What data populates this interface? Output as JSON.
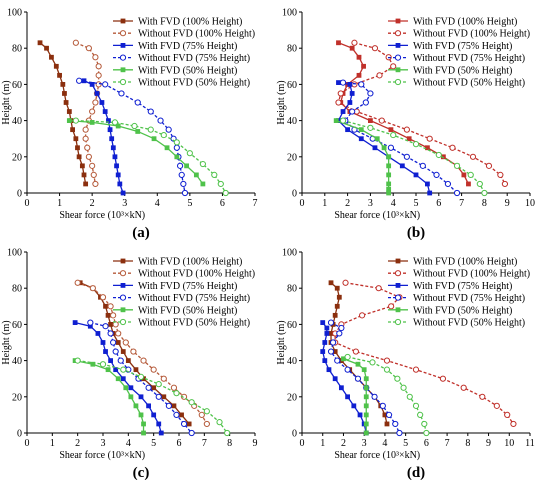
{
  "chart_data": [
    {
      "id": "a",
      "type": "line",
      "panel_label": "(a)",
      "xlabel": "Shear force (10³×kN)",
      "ylabel": "Height (m)",
      "xlim": [
        0,
        7
      ],
      "ylim": [
        0,
        100
      ],
      "xticks": [
        0,
        1,
        2,
        3,
        4,
        5,
        6,
        7
      ],
      "yticks": [
        0,
        20,
        40,
        60,
        80,
        100
      ],
      "legend_position": "top-right",
      "series": [
        {
          "name": "With FVD (100% Height)",
          "color": "#8b2f0e",
          "dashed": false,
          "marker": "square",
          "x": [
            0.4,
            0.6,
            0.75,
            0.9,
            1.0,
            1.1,
            1.15,
            1.2,
            1.3,
            1.35,
            1.4,
            1.5,
            1.55,
            1.6,
            1.7,
            1.75,
            1.8
          ],
          "y": [
            83,
            80,
            75,
            70,
            65,
            60,
            55,
            50,
            45,
            40,
            35,
            30,
            25,
            20,
            15,
            10,
            5
          ]
        },
        {
          "name": "Without FVD (100% Height)",
          "color": "#b55a3a",
          "dashed": true,
          "marker": "circle",
          "x": [
            1.5,
            1.9,
            2.1,
            2.2,
            2.2,
            2.2,
            2.15,
            2.1,
            2.0,
            1.9,
            1.8,
            1.8,
            1.85,
            1.9,
            2.0,
            2.05,
            2.1
          ],
          "y": [
            83,
            80,
            75,
            70,
            65,
            60,
            55,
            50,
            45,
            40,
            35,
            30,
            25,
            20,
            15,
            10,
            5
          ]
        },
        {
          "name": "With FVD (75% Height)",
          "color": "#0f1fd1",
          "dashed": false,
          "marker": "square",
          "x": [
            1.75,
            2.0,
            2.15,
            2.3,
            2.4,
            2.5,
            2.55,
            2.6,
            2.65,
            2.7,
            2.75,
            2.8,
            2.85,
            2.95
          ],
          "y": [
            62,
            60,
            55,
            50,
            45,
            40,
            35,
            30,
            25,
            20,
            15,
            10,
            5,
            0
          ]
        },
        {
          "name": "Without FVD (75% Height)",
          "color": "#0f1fd1",
          "dashed": true,
          "marker": "circle",
          "x": [
            1.6,
            2.4,
            2.9,
            3.4,
            3.8,
            4.1,
            4.35,
            4.5,
            4.6,
            4.65,
            4.7,
            4.75,
            4.8,
            4.85
          ],
          "y": [
            62,
            60,
            55,
            50,
            45,
            40,
            35,
            30,
            25,
            20,
            15,
            10,
            5,
            0
          ]
        },
        {
          "name": "With FVD (50% Height)",
          "color": "#4fc24a",
          "dashed": false,
          "marker": "square",
          "x": [
            1.3,
            2.0,
            2.8,
            3.4,
            3.9,
            4.3,
            4.6,
            4.9,
            5.2,
            5.4
          ],
          "y": [
            40,
            39,
            37,
            34,
            30,
            25,
            20,
            15,
            10,
            5
          ]
        },
        {
          "name": "Without FVD (50% Height)",
          "color": "#4fc24a",
          "dashed": true,
          "marker": "circle",
          "x": [
            1.5,
            2.7,
            3.3,
            3.8,
            4.2,
            4.6,
            5.0,
            5.4,
            5.75,
            5.95,
            6.1
          ],
          "y": [
            40,
            39,
            37,
            35,
            32,
            28,
            22,
            16,
            10,
            5,
            0
          ]
        }
      ]
    },
    {
      "id": "b",
      "type": "line",
      "panel_label": "(b)",
      "xlabel": "Shear force (10³×kN)",
      "ylabel": "Height (m)",
      "xlim": [
        0,
        10
      ],
      "ylim": [
        0,
        100
      ],
      "xticks": [
        0,
        1,
        2,
        3,
        4,
        5,
        6,
        7,
        8,
        9,
        10
      ],
      "yticks": [
        0,
        20,
        40,
        60,
        80,
        100
      ],
      "legend_position": "top-right",
      "series": [
        {
          "name": "With FVD (100% Height)",
          "color": "#c0302a",
          "dashed": false,
          "marker": "square",
          "x": [
            1.6,
            2.2,
            2.5,
            2.7,
            2.5,
            2.0,
            1.8,
            1.7,
            2.1,
            3.0,
            3.9,
            4.7,
            5.5,
            6.2,
            6.8,
            7.1,
            7.3
          ],
          "y": [
            83,
            80,
            75,
            70,
            65,
            60,
            55,
            50,
            45,
            40,
            35,
            30,
            25,
            20,
            15,
            10,
            5
          ]
        },
        {
          "name": "Without FVD (100% Height)",
          "color": "#c0302a",
          "dashed": true,
          "marker": "circle",
          "x": [
            2.3,
            3.2,
            3.8,
            4.0,
            3.4,
            2.3,
            1.7,
            1.6,
            2.4,
            3.5,
            4.6,
            5.6,
            6.6,
            7.5,
            8.2,
            8.7,
            8.9
          ],
          "y": [
            83,
            80,
            75,
            70,
            65,
            60,
            55,
            50,
            45,
            40,
            35,
            30,
            25,
            20,
            15,
            10,
            5
          ]
        },
        {
          "name": "With FVD (75% Height)",
          "color": "#0f1fd1",
          "dashed": false,
          "marker": "square",
          "x": [
            1.6,
            2.1,
            2.2,
            2.1,
            1.8,
            1.6,
            2.0,
            2.6,
            3.2,
            3.8,
            4.4,
            5.0,
            5.5,
            5.6
          ],
          "y": [
            61,
            60,
            55,
            50,
            45,
            40,
            35,
            30,
            25,
            20,
            15,
            10,
            5,
            0
          ]
        },
        {
          "name": "Without FVD (75% Height)",
          "color": "#0f1fd1",
          "dashed": true,
          "marker": "circle",
          "x": [
            1.8,
            2.6,
            3.0,
            2.8,
            2.2,
            1.9,
            2.3,
            3.1,
            3.9,
            4.6,
            5.3,
            5.9,
            6.4,
            6.8
          ],
          "y": [
            61,
            60,
            55,
            50,
            45,
            40,
            35,
            30,
            25,
            20,
            15,
            10,
            5,
            0
          ]
        },
        {
          "name": "With FVD (50% Height)",
          "color": "#4fc24a",
          "dashed": false,
          "marker": "square",
          "x": [
            1.5,
            2.6,
            3.3,
            3.6,
            3.8,
            3.8,
            3.8,
            3.8,
            3.8,
            3.8
          ],
          "y": [
            40,
            35,
            30,
            25,
            20,
            15,
            10,
            5,
            2,
            0
          ]
        },
        {
          "name": "Without FVD (50% Height)",
          "color": "#4fc24a",
          "dashed": true,
          "marker": "circle",
          "x": [
            1.8,
            3.0,
            4.0,
            5.0,
            6.0,
            6.8,
            7.4,
            7.8,
            8.0
          ],
          "y": [
            40,
            36,
            32,
            27,
            21,
            15,
            10,
            5,
            0
          ]
        }
      ]
    },
    {
      "id": "c",
      "type": "line",
      "panel_label": "(c)",
      "xlabel": "Shear force (10³×kN)",
      "ylabel": "Height (m)",
      "xlim": [
        0,
        9
      ],
      "ylim": [
        0,
        100
      ],
      "xticks": [
        0,
        1,
        2,
        3,
        4,
        5,
        6,
        7,
        8,
        9
      ],
      "yticks": [
        0,
        20,
        40,
        60,
        80,
        100
      ],
      "legend_position": "top-right",
      "series": [
        {
          "name": "With FVD (100% Height)",
          "color": "#8b2f0e",
          "dashed": false,
          "marker": "square",
          "x": [
            2.1,
            2.6,
            2.9,
            3.1,
            3.2,
            3.3,
            3.4,
            3.6,
            3.8,
            4.0,
            4.3,
            4.6,
            5.0,
            5.4,
            5.8,
            6.1,
            6.4
          ],
          "y": [
            83,
            80,
            75,
            70,
            65,
            60,
            55,
            50,
            45,
            40,
            35,
            30,
            25,
            20,
            15,
            10,
            5
          ]
        },
        {
          "name": "Without FVD (100% Height)",
          "color": "#b55a3a",
          "dashed": true,
          "marker": "circle",
          "x": [
            2.0,
            2.6,
            3.0,
            3.3,
            3.4,
            3.5,
            3.6,
            3.9,
            4.2,
            4.6,
            5.0,
            5.4,
            5.8,
            6.2,
            6.6,
            6.9,
            7.1
          ],
          "y": [
            83,
            80,
            75,
            70,
            65,
            60,
            55,
            50,
            45,
            40,
            35,
            30,
            25,
            20,
            15,
            10,
            5
          ]
        },
        {
          "name": "With FVD (75% Height)",
          "color": "#0f1fd1",
          "dashed": false,
          "marker": "square",
          "x": [
            1.9,
            2.5,
            2.8,
            3.0,
            3.1,
            3.3,
            3.5,
            3.8,
            4.1,
            4.5,
            4.8,
            5.0,
            5.2,
            5.3
          ],
          "y": [
            61,
            59,
            55,
            50,
            45,
            40,
            35,
            30,
            25,
            20,
            15,
            10,
            5,
            0
          ]
        },
        {
          "name": "Without FVD (75% Height)",
          "color": "#0f1fd1",
          "dashed": true,
          "marker": "circle",
          "x": [
            2.5,
            3.1,
            3.3,
            3.4,
            3.5,
            3.7,
            4.0,
            4.4,
            4.8,
            5.2,
            5.6,
            5.9,
            6.2,
            6.5
          ],
          "y": [
            61,
            59,
            55,
            50,
            45,
            40,
            35,
            30,
            25,
            20,
            15,
            10,
            5,
            0
          ]
        },
        {
          "name": "With FVD (50% Height)",
          "color": "#4fc24a",
          "dashed": false,
          "marker": "square",
          "x": [
            1.9,
            2.6,
            3.2,
            3.6,
            3.9,
            4.1,
            4.3,
            4.5,
            4.6,
            4.6
          ],
          "y": [
            40,
            38,
            35,
            30,
            25,
            20,
            15,
            10,
            5,
            0
          ]
        },
        {
          "name": "Without FVD (50% Height)",
          "color": "#4fc24a",
          "dashed": true,
          "marker": "circle",
          "x": [
            2.0,
            3.0,
            3.8,
            4.5,
            5.2,
            5.9,
            6.5,
            7.1,
            7.6,
            7.9
          ],
          "y": [
            40,
            38,
            35,
            31,
            27,
            22,
            17,
            12,
            6,
            0
          ]
        }
      ]
    },
    {
      "id": "d",
      "type": "line",
      "panel_label": "(d)",
      "xlabel": "Shear force (10³×kN)",
      "ylabel": "Height (m)",
      "xlim": [
        0,
        11
      ],
      "ylim": [
        0,
        100
      ],
      "xticks": [
        0,
        1,
        2,
        3,
        4,
        5,
        6,
        7,
        8,
        9,
        10,
        11
      ],
      "yticks": [
        0,
        20,
        40,
        60,
        80,
        100
      ],
      "legend_position": "top-right",
      "series": [
        {
          "name": "With FVD (100% Height)",
          "color": "#8b2f0e",
          "dashed": false,
          "marker": "square",
          "x": [
            1.4,
            1.7,
            1.8,
            1.7,
            1.6,
            1.5,
            1.4,
            1.4,
            1.6,
            1.9,
            2.3,
            2.7,
            3.1,
            3.5,
            3.8,
            4.0,
            4.1
          ],
          "y": [
            83,
            80,
            75,
            70,
            65,
            60,
            55,
            50,
            45,
            40,
            35,
            30,
            25,
            20,
            15,
            10,
            5
          ]
        },
        {
          "name": "Without FVD (100% Height)",
          "color": "#c0302a",
          "dashed": true,
          "marker": "circle",
          "x": [
            2.1,
            3.7,
            4.7,
            4.3,
            2.9,
            1.9,
            1.6,
            1.6,
            2.6,
            4.1,
            5.5,
            6.8,
            7.8,
            8.7,
            9.4,
            9.9,
            10.2
          ],
          "y": [
            83,
            80,
            75,
            70,
            65,
            60,
            55,
            50,
            45,
            40,
            35,
            30,
            25,
            20,
            15,
            10,
            5
          ]
        },
        {
          "name": "With FVD (75% Height)",
          "color": "#0f1fd1",
          "dashed": false,
          "marker": "square",
          "x": [
            1.0,
            1.2,
            1.2,
            1.1,
            1.0,
            1.1,
            1.3,
            1.6,
            1.9,
            2.2,
            2.5,
            2.8,
            3.0,
            3.1
          ],
          "y": [
            61,
            58,
            55,
            50,
            45,
            40,
            35,
            30,
            25,
            20,
            15,
            10,
            5,
            0
          ]
        },
        {
          "name": "Without FVD (75% Height)",
          "color": "#0f1fd1",
          "dashed": true,
          "marker": "circle",
          "x": [
            1.4,
            1.9,
            1.8,
            1.5,
            1.4,
            1.7,
            2.2,
            2.7,
            3.1,
            3.5,
            3.9,
            4.2,
            4.5,
            4.7
          ],
          "y": [
            61,
            58,
            55,
            50,
            45,
            40,
            35,
            30,
            25,
            20,
            15,
            10,
            5,
            0
          ]
        },
        {
          "name": "With FVD (50% Height)",
          "color": "#4fc24a",
          "dashed": false,
          "marker": "square",
          "x": [
            2.0,
            2.7,
            3.0,
            3.1,
            3.1,
            3.1,
            3.1,
            3.1,
            3.1,
            3.1
          ],
          "y": [
            41,
            38,
            35,
            30,
            25,
            20,
            15,
            10,
            5,
            0
          ]
        },
        {
          "name": "Without FVD (50% Height)",
          "color": "#4fc24a",
          "dashed": true,
          "marker": "circle",
          "x": [
            2.2,
            3.4,
            4.1,
            4.6,
            4.9,
            5.2,
            5.5,
            5.7,
            5.9,
            6.0
          ],
          "y": [
            42,
            39,
            35,
            30,
            25,
            20,
            15,
            10,
            5,
            0
          ]
        }
      ]
    }
  ]
}
